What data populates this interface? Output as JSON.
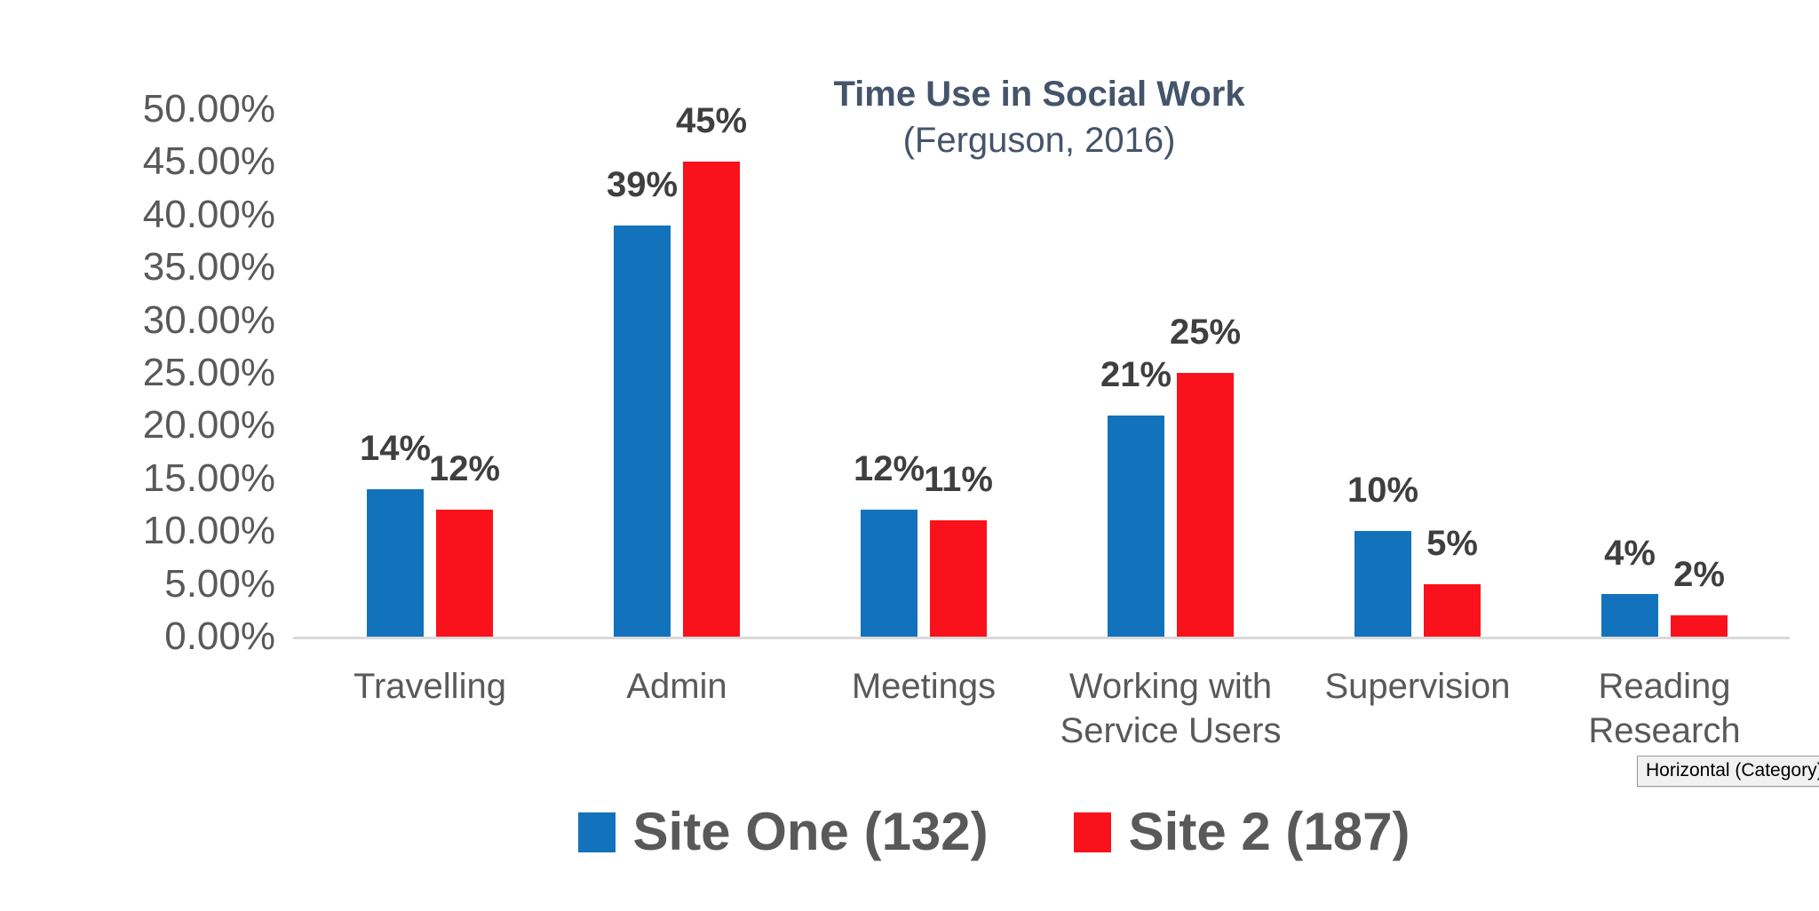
{
  "chart_data": {
    "type": "bar",
    "title": "Time Use in Social Work",
    "subtitle": "(Ferguson, 2016)",
    "title_color": "#44546A",
    "categories": [
      "Travelling",
      "Admin",
      "Meetings",
      "Working with\nService Users",
      "Supervision",
      "Reading\nResearch"
    ],
    "series": [
      {
        "name": "Site One (132)",
        "color": "#1272BC",
        "values": [
          14,
          39,
          12,
          21,
          10,
          4
        ],
        "labels": [
          "14%",
          "39%",
          "12%",
          "21%",
          "10%",
          "4%"
        ]
      },
      {
        "name": "Site 2 (187)",
        "color": "#F9121B",
        "values": [
          12,
          45,
          11,
          25,
          5,
          2
        ],
        "labels": [
          "12%",
          "45%",
          "11%",
          "25%",
          "5%",
          "2%"
        ]
      }
    ],
    "ylim": [
      0,
      50
    ],
    "ytick_step": 5,
    "y_ticks": [
      "0.00%",
      "5.00%",
      "10.00%",
      "15.00%",
      "20.00%",
      "25.00%",
      "30.00%",
      "35.00%",
      "40.00%",
      "45.00%",
      "50.00%"
    ],
    "grid": "off",
    "legend_position": "bottom",
    "axis_label_color": "#595959",
    "data_label_color": "#3F3F3F",
    "baseline_color": "#D9D9D9"
  },
  "tooltip": {
    "text": "Horizontal (Category)"
  }
}
